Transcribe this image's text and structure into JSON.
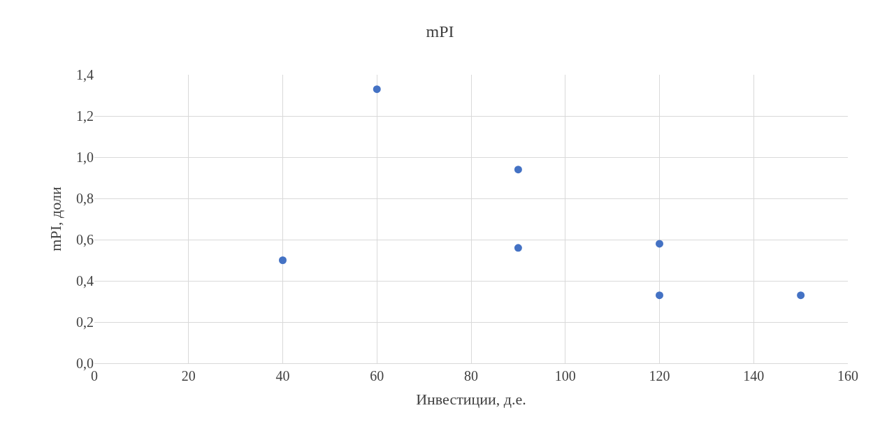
{
  "chart_data": {
    "type": "scatter",
    "title": "mPI",
    "xlabel": "Инвестиции, д.е.",
    "ylabel": "mPI, доли",
    "x": [
      40,
      60,
      90,
      90,
      120,
      120,
      150
    ],
    "series": [
      {
        "color": "#4472c4",
        "values": [
          0.5,
          1.33,
          0.94,
          0.56,
          0.58,
          0.33,
          0.33
        ]
      }
    ],
    "xlim": [
      0,
      160
    ],
    "xticks": [
      0,
      20,
      40,
      60,
      80,
      100,
      120,
      140,
      160
    ],
    "ylim": [
      0,
      1.4
    ],
    "yticks": [
      {
        "value": 0,
        "label": "0,0"
      },
      {
        "value": 0.2,
        "label": "0,2"
      },
      {
        "value": 0.4,
        "label": "0,4"
      },
      {
        "value": 0.6,
        "label": "0,6"
      },
      {
        "value": 0.8,
        "label": "0,8"
      },
      {
        "value": 1.0,
        "label": "1,0"
      },
      {
        "value": 1.2,
        "label": "1,2"
      },
      {
        "value": 1.4,
        "label": "1,4"
      }
    ],
    "grid": true,
    "marker": "circle"
  }
}
